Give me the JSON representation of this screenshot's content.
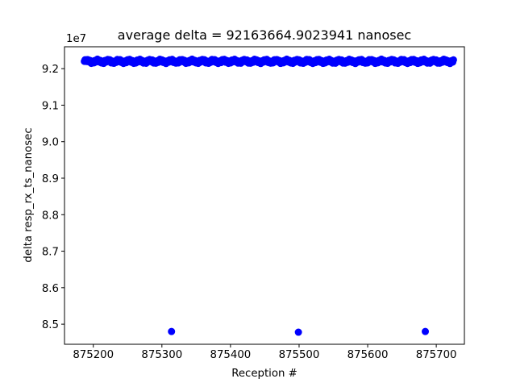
{
  "chart_data": {
    "type": "scatter",
    "title": "average delta = 92163664.9023941 nanosec",
    "xlabel": "Reception #",
    "ylabel": "delta resp_rx_ts_nanosec",
    "y_offset_label": "1e7",
    "xlim": [
      875158,
      875741
    ],
    "ylim": [
      8.445,
      9.26
    ],
    "y_multiplier": 10000000,
    "x_ticks": [
      875200,
      875300,
      875400,
      875500,
      875600,
      875700
    ],
    "x_tick_labels": [
      "875200",
      "875300",
      "875400",
      "875500",
      "875600",
      "875700"
    ],
    "y_ticks": [
      8.5,
      8.6,
      8.7,
      8.8,
      8.9,
      9.0,
      9.1,
      9.2
    ],
    "y_tick_labels": [
      "8.5",
      "8.6",
      "8.7",
      "8.8",
      "8.9",
      "9.0",
      "9.1",
      "9.2"
    ],
    "grid": false,
    "marker_color": "#0000ff",
    "main_series": {
      "x_start": 875187,
      "x_end": 875725,
      "y_base": 9.22,
      "y_jitter": 0.006
    },
    "outliers": [
      {
        "x": 875314,
        "y": 8.48
      },
      {
        "x": 875499,
        "y": 8.478
      },
      {
        "x": 875684,
        "y": 8.48
      }
    ]
  }
}
